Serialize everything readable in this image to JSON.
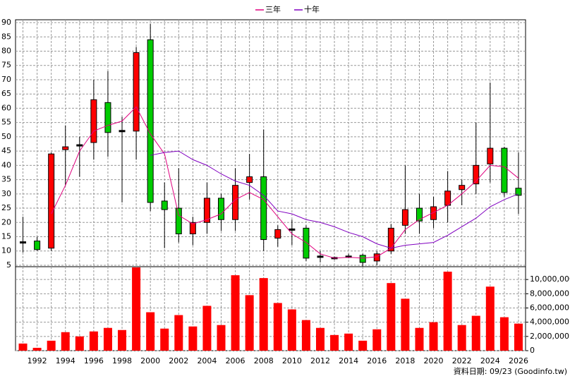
{
  "chart_data": [
    {
      "type": "candlestick",
      "categories": [
        null,
        "1992",
        null,
        "1994",
        null,
        "1996",
        null,
        "1998",
        null,
        "2000",
        null,
        "2002",
        null,
        "2004",
        null,
        "2006",
        null,
        "2008",
        null,
        "2010",
        null,
        "2012",
        null,
        "2014",
        null,
        "2016",
        null,
        "2018",
        null,
        "2020",
        null,
        "2022",
        null,
        "2024",
        null,
        "2026"
      ],
      "open": [
        13,
        13.5,
        11,
        45.5,
        47,
        48,
        62,
        52,
        52,
        84,
        27.5,
        25,
        16,
        20,
        28.5,
        21,
        34,
        36,
        14.5,
        17.5,
        18,
        8,
        7.5,
        8,
        8.5,
        6.5,
        10,
        19,
        25,
        21,
        26,
        31.5,
        33.5,
        40.5,
        46,
        32
      ],
      "high": [
        22,
        15,
        44.5,
        54,
        50,
        70,
        73,
        57,
        81.5,
        89.5,
        34,
        39,
        22,
        34,
        30,
        39,
        44,
        52.5,
        19,
        21,
        19,
        10,
        8,
        9,
        9,
        10,
        19.5,
        40,
        30,
        29,
        38,
        35,
        55,
        69,
        46.5,
        44.5
      ],
      "low": [
        9.5,
        10,
        10,
        33,
        36,
        42,
        43,
        27,
        42,
        24,
        11,
        13,
        12,
        16,
        17,
        17,
        28,
        10,
        11.5,
        12,
        6.5,
        6,
        7,
        7.5,
        4.5,
        5,
        9,
        16,
        16,
        18,
        20,
        26,
        30,
        34,
        29,
        23
      ],
      "close": [
        13,
        10.5,
        44,
        46.5,
        47,
        63,
        51.5,
        52,
        79.5,
        27,
        24.5,
        16,
        20,
        28.5,
        21,
        33,
        36,
        14,
        17.5,
        17.5,
        7.5,
        8,
        7.5,
        8,
        6,
        9,
        18,
        24.5,
        20.5,
        25.5,
        31,
        33,
        40,
        46,
        30.5,
        29.5
      ],
      "up_color": "#ff0000",
      "down_color": "#00cc00",
      "flat_color": "#000000",
      "series": [
        {
          "name": "三年",
          "color": "#e0007f",
          "values": [
            null,
            null,
            23,
            33,
            45,
            52,
            54,
            55.5,
            60.5,
            51,
            44,
            22.5,
            19.5,
            21,
            23,
            28,
            30.5,
            28,
            22,
            16,
            13,
            9,
            7.5,
            7.8,
            7.5,
            8,
            11,
            17.5,
            21,
            23.5,
            26,
            30,
            34.5,
            40,
            39.5,
            35.5
          ]
        },
        {
          "name": "十年",
          "color": "#8000c0",
          "values": [
            null,
            null,
            null,
            null,
            null,
            null,
            null,
            null,
            null,
            43.5,
            44.5,
            45,
            42,
            40,
            37,
            34.5,
            33,
            29.5,
            24,
            23,
            21,
            20,
            18.5,
            16.5,
            15,
            12.5,
            11,
            12,
            12.5,
            13,
            15.5,
            18.5,
            21.5,
            25.5,
            28,
            30
          ]
        }
      ],
      "ylim": [
        4.5,
        91
      ],
      "yticks": [
        5,
        10,
        15,
        20,
        25,
        30,
        35,
        40,
        45,
        50,
        55,
        60,
        65,
        70,
        75,
        80,
        85,
        90
      ],
      "grid": true
    },
    {
      "type": "bar",
      "color": "#ff0000",
      "values": [
        1000000,
        400000,
        1400000,
        2600000,
        2000000,
        2700000,
        3200000,
        2900000,
        11700000,
        5400000,
        3100000,
        5000000,
        3400000,
        6300000,
        3600000,
        10600000,
        7800000,
        10200000,
        6700000,
        5800000,
        4300000,
        3200000,
        2200000,
        2400000,
        1400000,
        3000000,
        9500000,
        7300000,
        3200000,
        4000000,
        11100000,
        3600000,
        4900000,
        9000000,
        4700000,
        3800000
      ],
      "ylim": [
        0,
        11800000
      ],
      "yticks": [
        0,
        {
          "value": 2000000,
          "label": "2,000,000"
        },
        {
          "value": 4000000,
          "label": "4,000,000"
        },
        {
          "value": 6000000,
          "label": "6,000,000"
        },
        {
          "value": 8000000,
          "label": "8,000,000"
        },
        {
          "value": 10000000,
          "label": "10,000,000"
        }
      ],
      "y_axis_side": "right",
      "grid": true,
      "footnote": "資料日期: 09/23  (Goodinfo.tw)"
    }
  ]
}
